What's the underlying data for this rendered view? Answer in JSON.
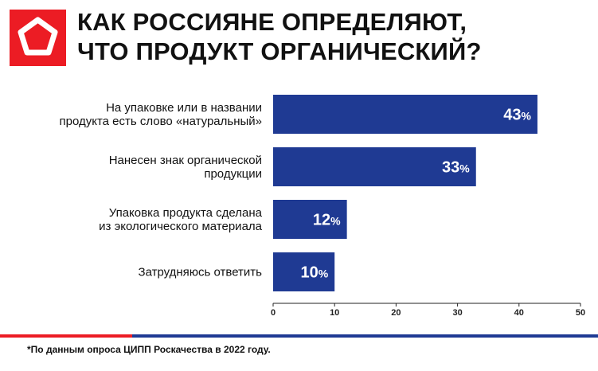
{
  "title": {
    "line1": "КАК РОССИЯНЕ ОПРЕДЕЛЯЮТ,",
    "line2": "ЧТО ПРОДУКТ ОРГАНИЧЕСКИЙ?"
  },
  "colors": {
    "brand_red": "#ec1c24",
    "bar_blue": "#1f3a93",
    "stripe_blue": "#1f3a93"
  },
  "logo": {
    "icon": "pentagon-logo-icon"
  },
  "chart_data": {
    "type": "bar",
    "orientation": "horizontal",
    "categories": [
      [
        "На упаковке или в названии",
        "продукта есть слово «натуральный»"
      ],
      [
        "Нанесен знак органической",
        "продукции"
      ],
      [
        "Упаковка продукта сделана",
        "из экологического материала"
      ],
      [
        "Затрудняюсь ответить"
      ]
    ],
    "values": [
      43,
      33,
      12,
      10
    ],
    "value_suffix": "%",
    "xlim": [
      0,
      50
    ],
    "xticks": [
      0,
      10,
      20,
      30,
      40,
      50
    ],
    "grid": false
  },
  "footnote": "*По данным опроса ЦИПП Роскачества в 2022 году."
}
